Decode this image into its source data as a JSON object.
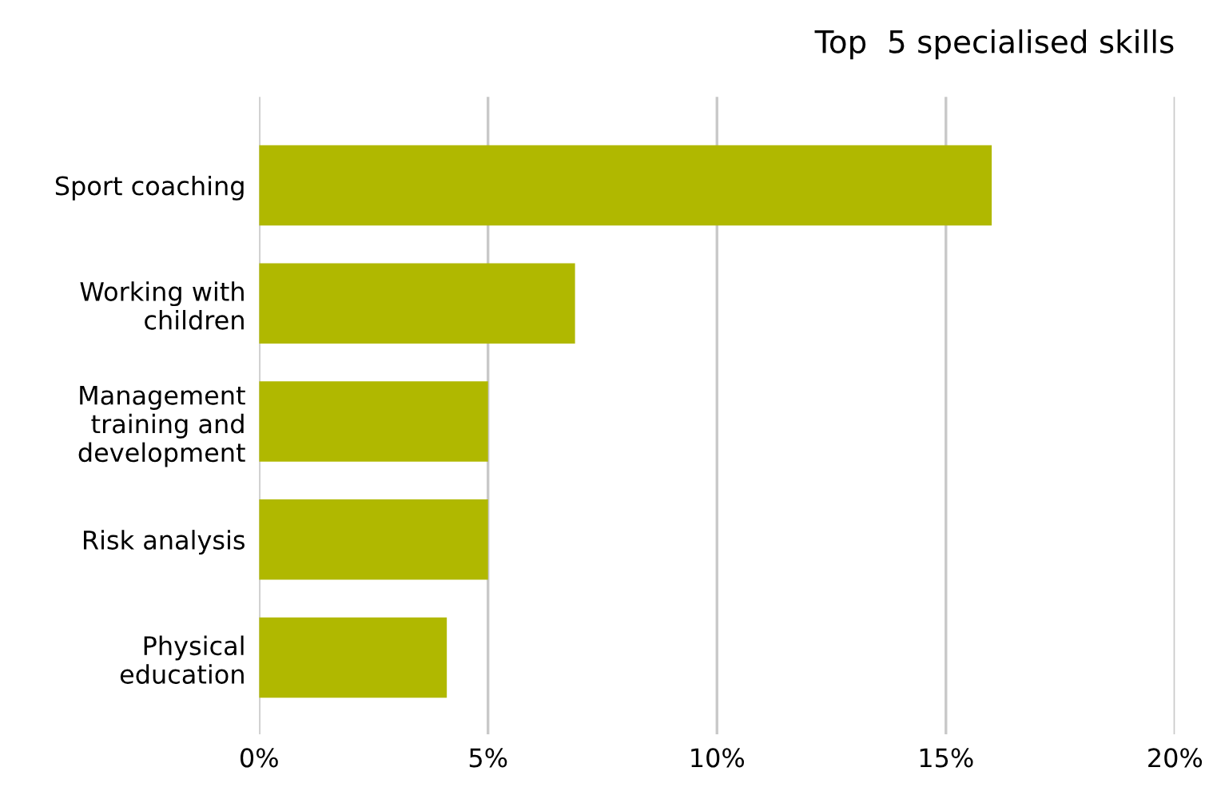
{
  "chart_data": {
    "type": "bar",
    "orientation": "horizontal",
    "title": "Top  5 specialised skills",
    "categories": [
      "Sport coaching",
      "Working with\nchildren",
      "Management\ntraining and\ndevelopment",
      "Risk analysis",
      "Physical\neducation"
    ],
    "values": [
      16.0,
      6.9,
      5.0,
      5.0,
      4.1
    ],
    "color": "#b0b800",
    "xlim": [
      0,
      20
    ],
    "xticks": [
      {
        "value": 0,
        "label": "0%"
      },
      {
        "value": 5,
        "label": "5%"
      },
      {
        "value": 10,
        "label": "10%"
      },
      {
        "value": 15,
        "label": "15%"
      },
      {
        "value": 20,
        "label": "20%"
      }
    ],
    "grid": "x"
  }
}
